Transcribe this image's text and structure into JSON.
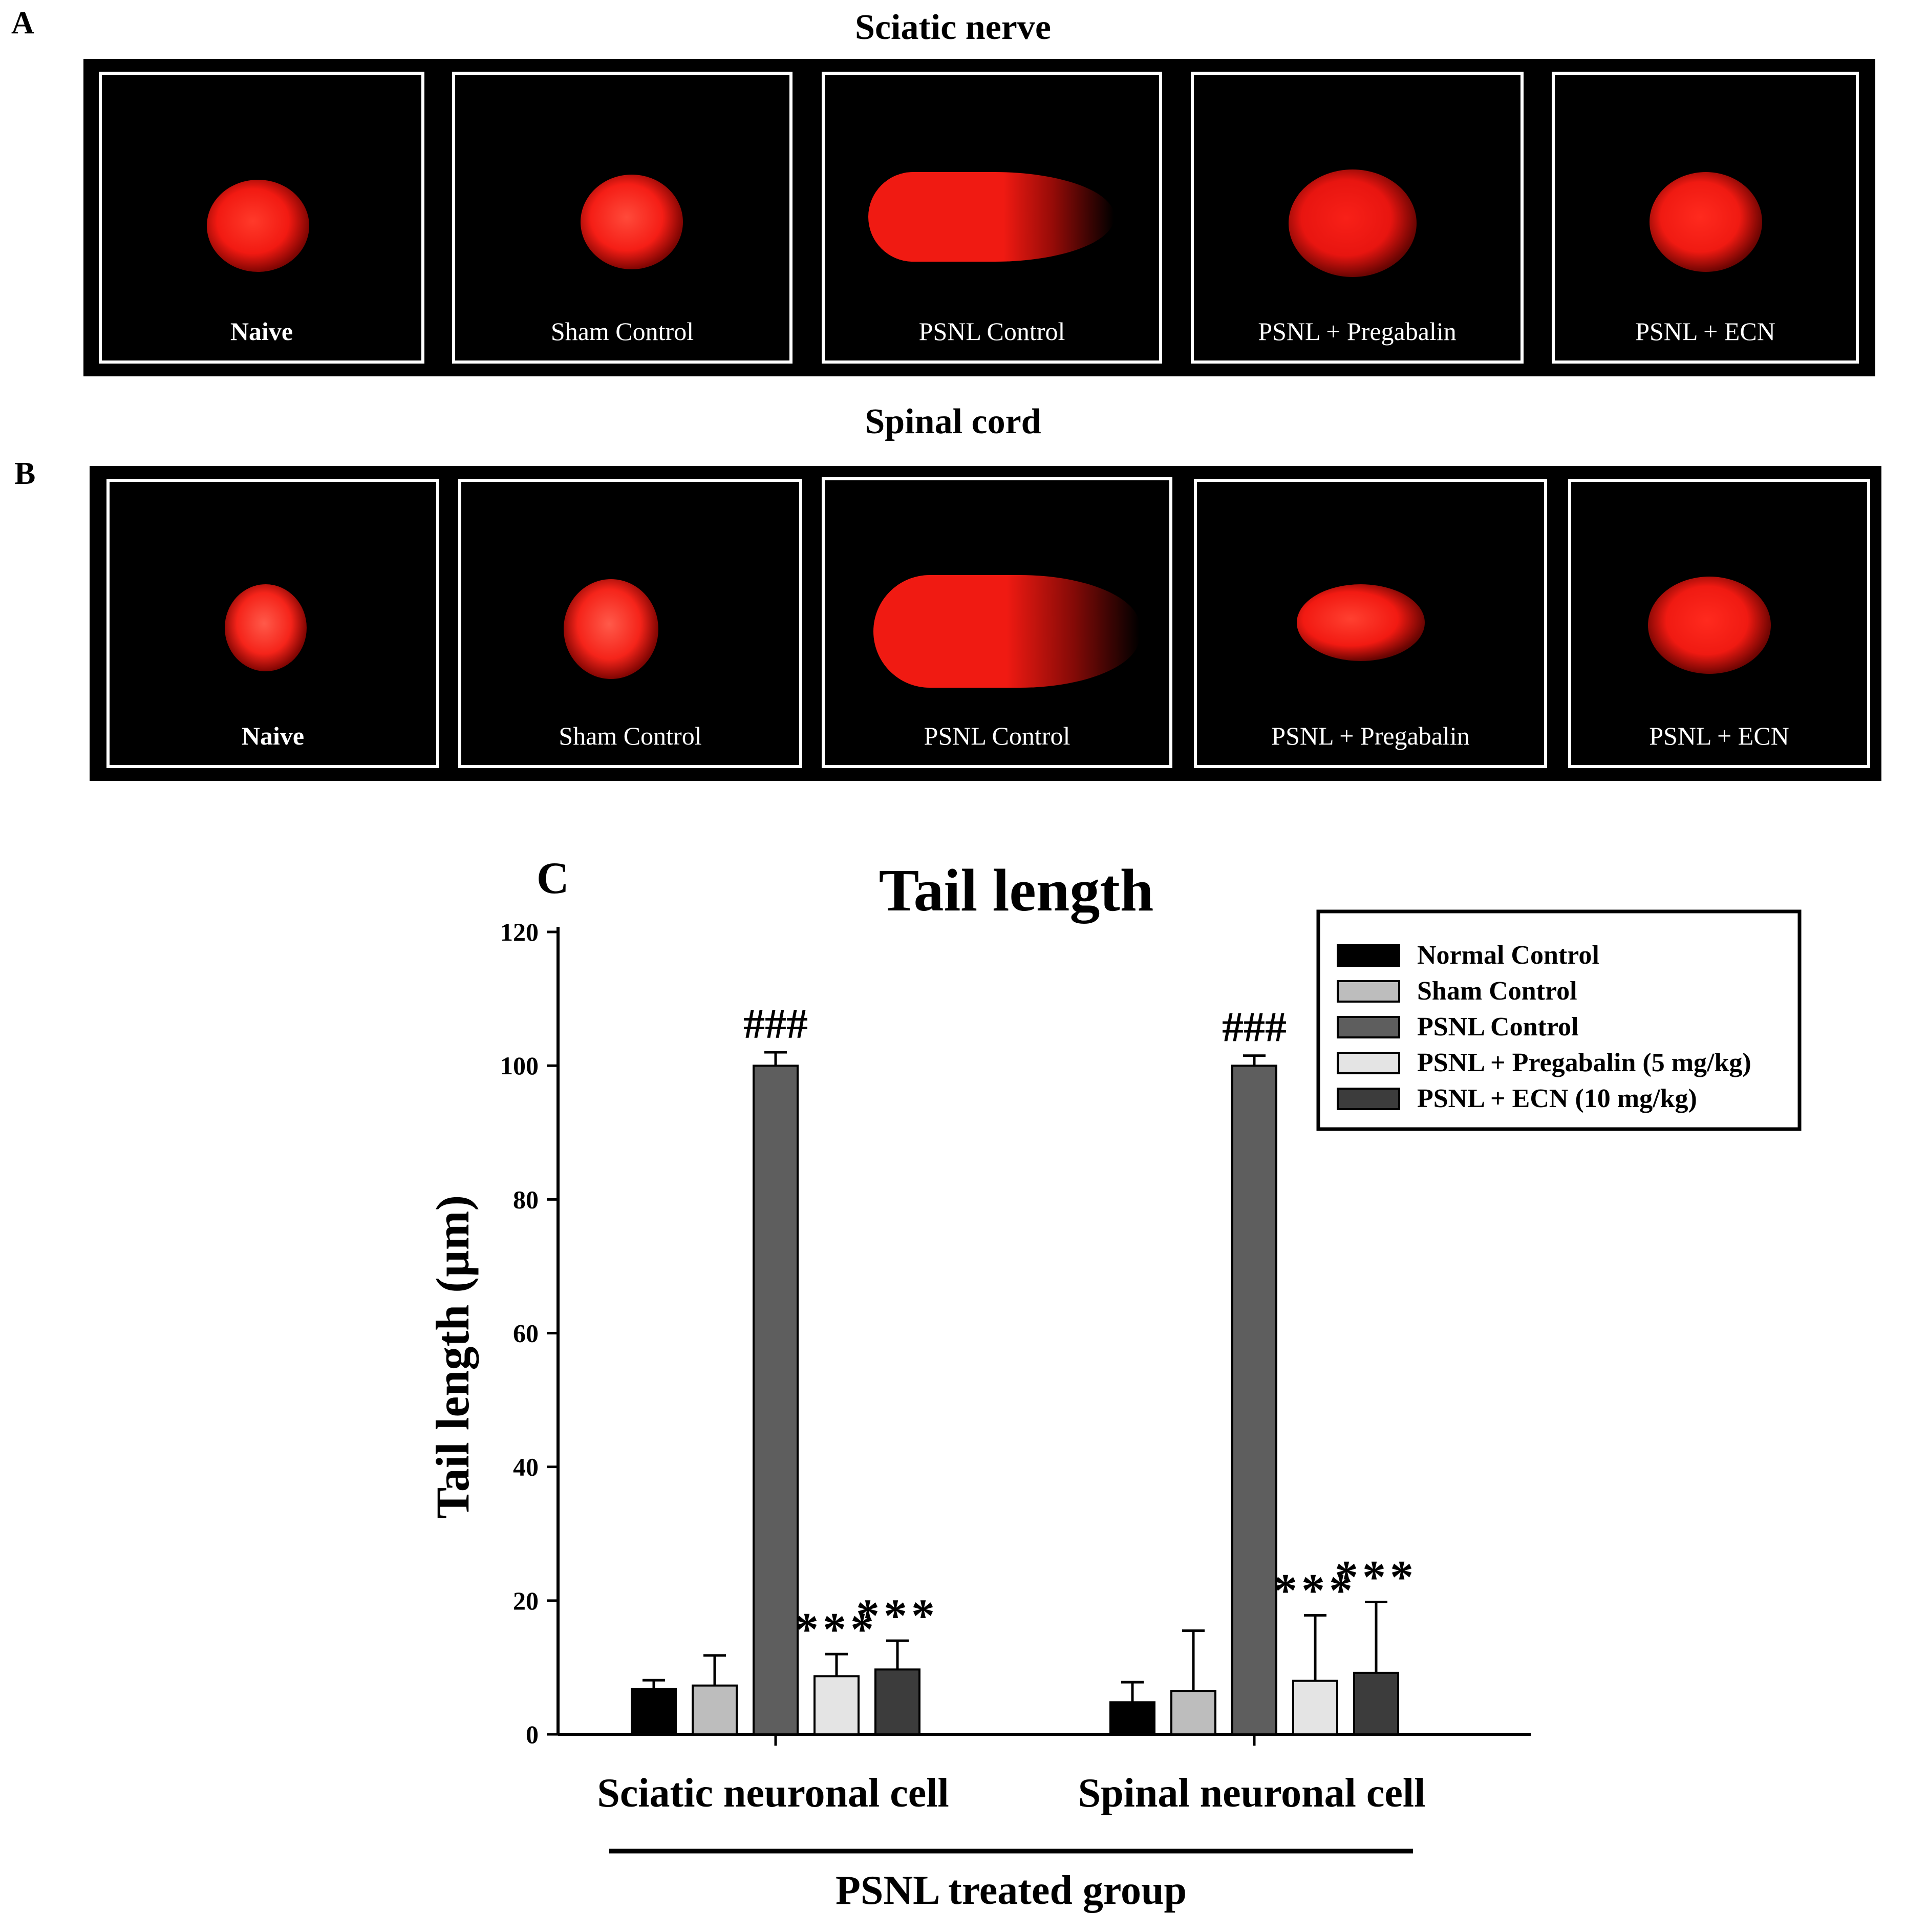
{
  "panel_a": {
    "label": "A",
    "title": "Sciatic nerve",
    "cells": [
      {
        "caption": "Naive",
        "bold": true
      },
      {
        "caption": "Sham Control",
        "bold": false
      },
      {
        "caption": "PSNL Control",
        "bold": false
      },
      {
        "caption": "PSNL + Pregabalin",
        "bold": false
      },
      {
        "caption": "PSNL + ECN",
        "bold": false
      }
    ]
  },
  "panel_b": {
    "label": "B",
    "title": "Spinal cord",
    "cells": [
      {
        "caption": "Naive",
        "bold": true
      },
      {
        "caption": "Sham Control",
        "bold": false
      },
      {
        "caption": "PSNL Control",
        "bold": false
      },
      {
        "caption": "PSNL + Pregabalin",
        "bold": false
      },
      {
        "caption": "PSNL + ECN",
        "bold": false
      }
    ]
  },
  "panel_c": {
    "label": "C"
  },
  "chart_data": {
    "type": "bar",
    "title": "Tail length",
    "ylabel": "Tail length (µm)",
    "xlabel": "PSNL treated group",
    "ylim": [
      0,
      120
    ],
    "yticks": [
      0,
      20,
      40,
      60,
      80,
      100,
      120
    ],
    "categories": [
      "Sciatic neuronal cell",
      "Spinal neuronal cell"
    ],
    "series": [
      {
        "name": "Normal Control",
        "color": "#000000",
        "values": [
          6.8,
          4.8
        ],
        "errors": [
          1.3,
          3.0
        ],
        "annotations": [
          "",
          ""
        ]
      },
      {
        "name": "Sham Control",
        "color": "#bdbdbd",
        "values": [
          7.3,
          6.5
        ],
        "errors": [
          4.5,
          9.0
        ],
        "annotations": [
          "",
          ""
        ]
      },
      {
        "name": "PSNL Control",
        "color": "#5e5e5e",
        "values": [
          100,
          100
        ],
        "errors": [
          2.0,
          1.5
        ],
        "annotations": [
          "###",
          "###"
        ]
      },
      {
        "name": "PSNL + Pregabalin (5 mg/kg)",
        "color": "#e4e4e4",
        "values": [
          8.7,
          8.0
        ],
        "errors": [
          3.3,
          9.8
        ],
        "annotations": [
          "***",
          "***"
        ]
      },
      {
        "name": "PSNL + ECN (10 mg/kg)",
        "color": "#3c3c3c",
        "values": [
          9.7,
          9.2
        ],
        "errors": [
          4.3,
          10.6
        ],
        "annotations": [
          "***",
          "***"
        ]
      }
    ],
    "legend_position": "top-right"
  }
}
